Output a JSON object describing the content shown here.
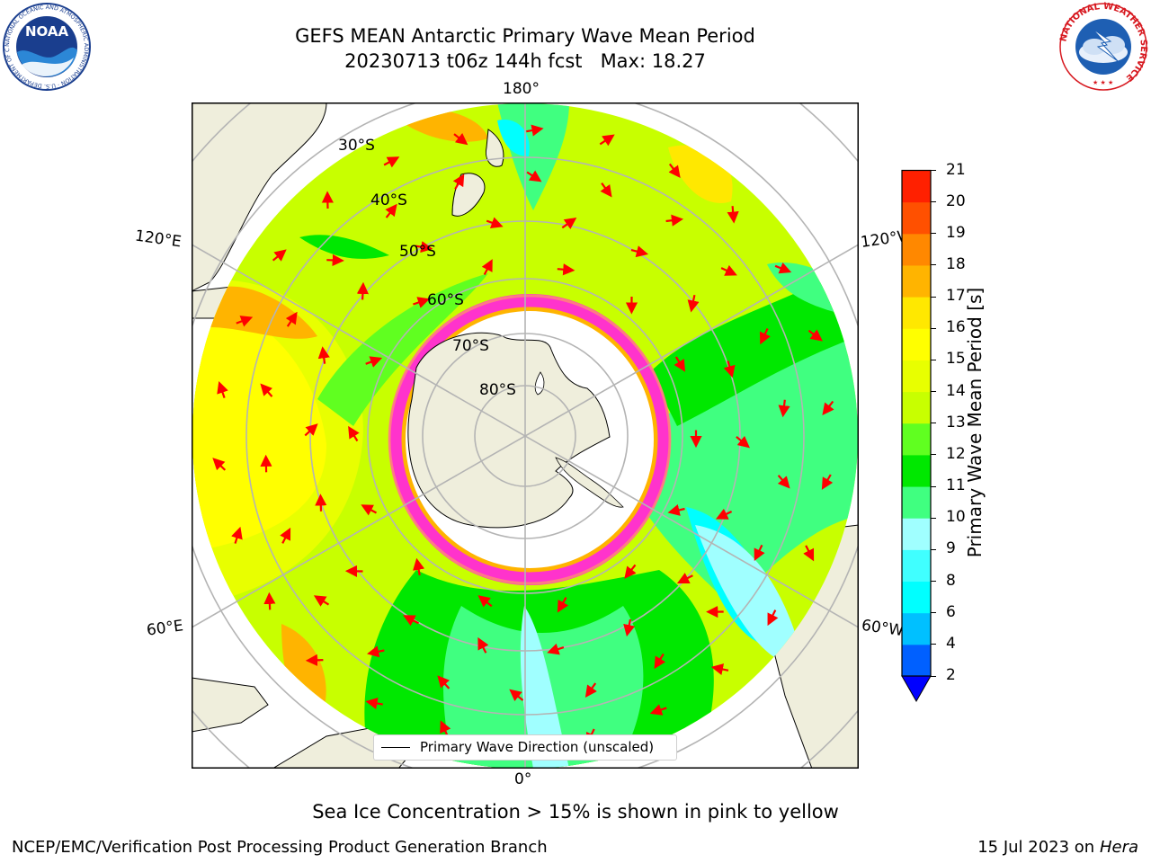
{
  "header": {
    "title_line1": "GEFS MEAN Antarctic Primary Wave Mean Period",
    "title_line2": "20230713 t06z 144h fcst   Max: 18.27"
  },
  "logos": {
    "left": "NOAA",
    "left_ring_text": "NATIONAL OCEANIC AND ATMOSPHERIC ADMINISTRATION · U.S. DEPARTMENT OF COMMERCE",
    "right_ring_text": "NATIONAL WEATHER SERVICE"
  },
  "map": {
    "projection": "south-polar-stereographic",
    "longitude_labels": {
      "top": "180°",
      "bottom": "0°",
      "upper_left": "120°E",
      "lower_left": "60°E",
      "upper_right": "120°W",
      "lower_right": "60°W"
    },
    "latitude_labels": [
      "30°S",
      "40°S",
      "50°S",
      "60°S",
      "70°S",
      "80°S"
    ],
    "legend_label": "Primary Wave Direction (unscaled)",
    "colors": {
      "land": "#efeedc",
      "ice_outline_pink": "#ff33cc",
      "arrow": "#ff0000",
      "grid": "#b4b4b4"
    }
  },
  "colorbar": {
    "label": "Primary Wave Mean Period [s]",
    "tick_labels": [
      "2",
      "4",
      "6",
      "8",
      "9",
      "10",
      "11",
      "12",
      "13",
      "14",
      "15",
      "16",
      "17",
      "18",
      "19",
      "20",
      "21"
    ],
    "levels": [
      {
        "value": "2",
        "color": "#0060ff"
      },
      {
        "value": "4",
        "color": "#00c0ff"
      },
      {
        "value": "6",
        "color": "#00ffff"
      },
      {
        "value": "8",
        "color": "#40ffff"
      },
      {
        "value": "9",
        "color": "#a0ffff"
      },
      {
        "value": "10",
        "color": "#40ff80"
      },
      {
        "value": "11",
        "color": "#00e800"
      },
      {
        "value": "12",
        "color": "#60ff20"
      },
      {
        "value": "13",
        "color": "#c8ff00"
      },
      {
        "value": "14",
        "color": "#e8ff00"
      },
      {
        "value": "15",
        "color": "#ffff00"
      },
      {
        "value": "16",
        "color": "#ffe800"
      },
      {
        "value": "17",
        "color": "#ffb400"
      },
      {
        "value": "18",
        "color": "#ff8800"
      },
      {
        "value": "19",
        "color": "#ff5000"
      },
      {
        "value": "20",
        "color": "#ff2000"
      }
    ],
    "under_color": "#0000ff"
  },
  "footer": {
    "note": "Sea Ice Concentration > 15% is shown in pink to yellow",
    "credit": "NCEP/EMC/Verification Post Processing Product Generation Branch",
    "date": "15 Jul 2023 on",
    "host": "Hera"
  }
}
